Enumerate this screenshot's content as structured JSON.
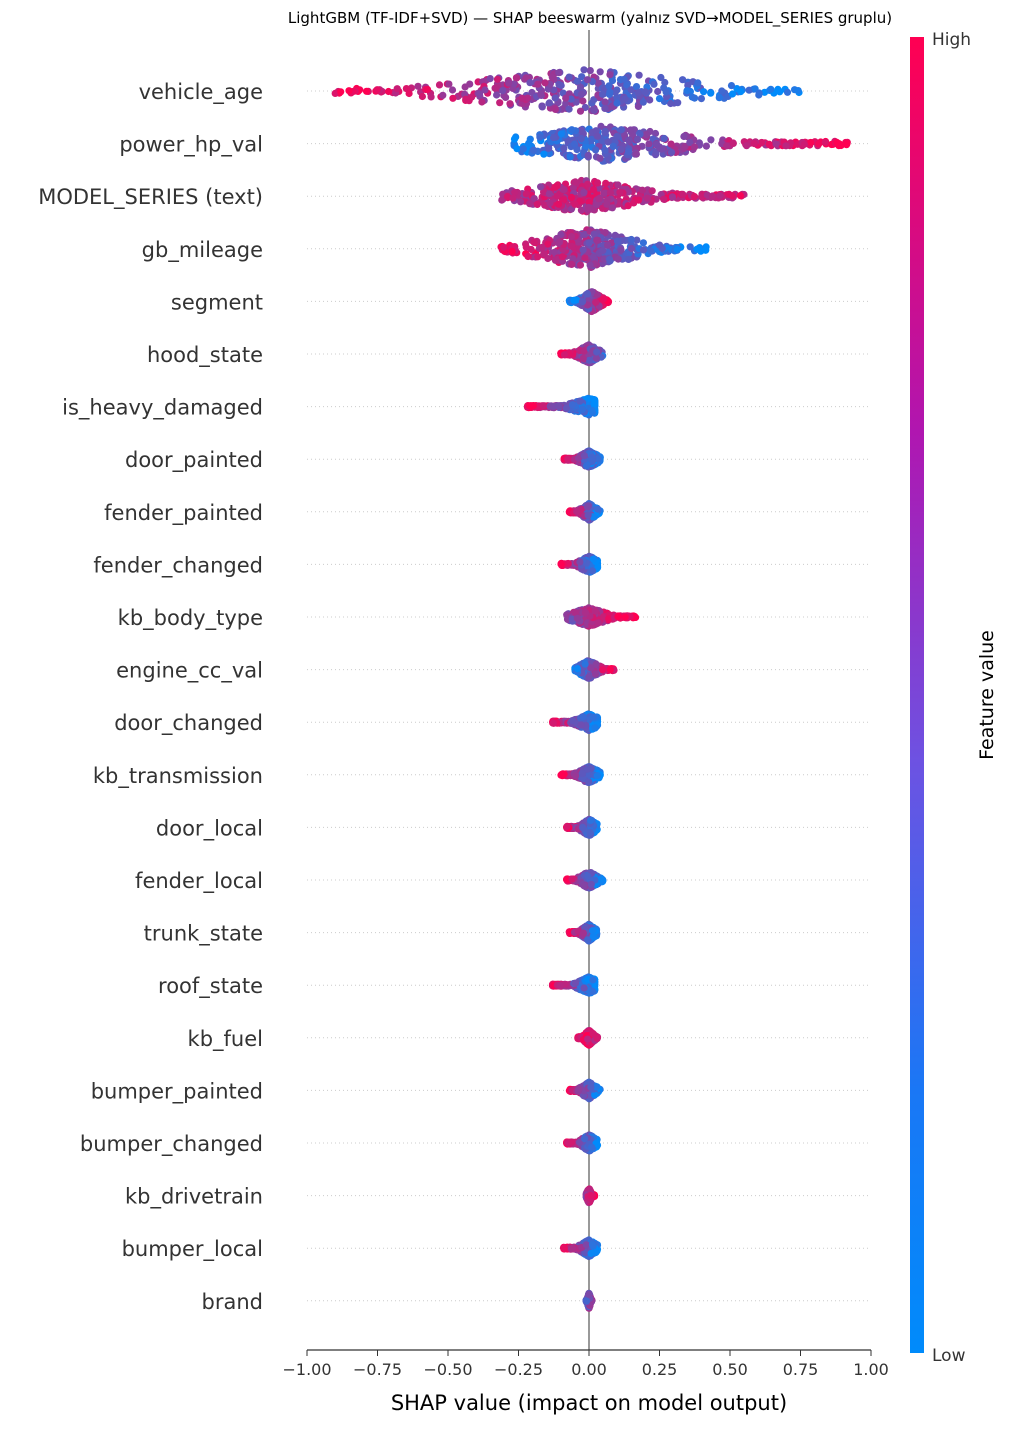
{
  "chart_data": {
    "type": "scatter",
    "subtype": "shap-beeswarm",
    "title": "LightGBM (TF-IDF+SVD) — SHAP beeswarm (yalnız SVD→MODEL_SERIES gruplu)",
    "xlabel": "SHAP value (impact on model output)",
    "xlim": [
      -1.0,
      1.0
    ],
    "xticks": [
      -1.0,
      -0.75,
      -0.5,
      -0.25,
      0.0,
      0.25,
      0.5,
      0.75,
      1.0
    ],
    "xtick_labels": [
      "−1.00",
      "−0.75",
      "−0.50",
      "−0.25",
      "0.00",
      "0.25",
      "0.50",
      "0.75",
      "1.00"
    ],
    "colorbar": {
      "label": "Feature value",
      "high_label": "High",
      "low_label": "Low",
      "low_color": "#008bfb",
      "high_color": "#ff0052"
    },
    "features": [
      {
        "name": "vehicle_age",
        "min": -0.92,
        "max": 0.76,
        "trend": -1,
        "spread": 1.0,
        "center": -0.02,
        "left_color": 1,
        "right_color": 0
      },
      {
        "name": "power_hp_val",
        "min": -0.27,
        "max": 0.92,
        "trend": 1,
        "spread": 0.8,
        "center": 0.05,
        "left_color": 0.1,
        "right_color": 1
      },
      {
        "name": "MODEL_SERIES (text)",
        "min": -0.31,
        "max": 0.55,
        "trend": 0,
        "spread": 0.7,
        "center": -0.02,
        "left_color": 0.7,
        "right_color": 0.8
      },
      {
        "name": "gb_mileage",
        "min": -0.32,
        "max": 0.42,
        "trend": -1,
        "spread": 0.9,
        "center": -0.01,
        "left_color": 1,
        "right_color": 0
      },
      {
        "name": "segment",
        "min": -0.07,
        "max": 0.07,
        "trend": 1,
        "spread": 0.35,
        "center": 0.01,
        "left_color": 0,
        "right_color": 1
      },
      {
        "name": "hood_state",
        "min": -0.1,
        "max": 0.05,
        "trend": -1,
        "spread": 0.3,
        "center": 0.0,
        "left_color": 1,
        "right_color": 0.3
      },
      {
        "name": "is_heavy_damaged",
        "min": -0.22,
        "max": 0.02,
        "trend": -1,
        "spread": 0.25,
        "center": 0.0,
        "left_color": 1,
        "right_color": 0
      },
      {
        "name": "door_painted",
        "min": -0.09,
        "max": 0.04,
        "trend": -1,
        "spread": 0.25,
        "center": 0.0,
        "left_color": 1,
        "right_color": 0
      },
      {
        "name": "fender_painted",
        "min": -0.07,
        "max": 0.04,
        "trend": -1,
        "spread": 0.25,
        "center": 0.0,
        "left_color": 1,
        "right_color": 0
      },
      {
        "name": "fender_changed",
        "min": -0.1,
        "max": 0.03,
        "trend": -1,
        "spread": 0.25,
        "center": 0.0,
        "left_color": 1,
        "right_color": 0
      },
      {
        "name": "kb_body_type",
        "min": -0.08,
        "max": 0.17,
        "trend": 1,
        "spread": 0.3,
        "center": 0.0,
        "left_color": 0.5,
        "right_color": 1
      },
      {
        "name": "engine_cc_val",
        "min": -0.05,
        "max": 0.09,
        "trend": 1,
        "spread": 0.3,
        "center": 0.0,
        "left_color": 0.1,
        "right_color": 1
      },
      {
        "name": "door_changed",
        "min": -0.13,
        "max": 0.03,
        "trend": -1,
        "spread": 0.25,
        "center": 0.0,
        "left_color": 1,
        "right_color": 0
      },
      {
        "name": "kb_transmission",
        "min": -0.1,
        "max": 0.04,
        "trend": -1,
        "spread": 0.25,
        "center": 0.0,
        "left_color": 1,
        "right_color": 0
      },
      {
        "name": "door_local",
        "min": -0.08,
        "max": 0.03,
        "trend": -1,
        "spread": 0.25,
        "center": 0.0,
        "left_color": 1,
        "right_color": 0
      },
      {
        "name": "fender_local",
        "min": -0.08,
        "max": 0.05,
        "trend": -1,
        "spread": 0.25,
        "center": 0.0,
        "left_color": 1,
        "right_color": 0
      },
      {
        "name": "trunk_state",
        "min": -0.07,
        "max": 0.03,
        "trend": -1,
        "spread": 0.25,
        "center": 0.0,
        "left_color": 1,
        "right_color": 0
      },
      {
        "name": "roof_state",
        "min": -0.13,
        "max": 0.02,
        "trend": -1,
        "spread": 0.25,
        "center": 0.0,
        "left_color": 1,
        "right_color": 0
      },
      {
        "name": "kb_fuel",
        "min": -0.04,
        "max": 0.03,
        "trend": -1,
        "spread": 0.2,
        "center": 0.0,
        "left_color": 1,
        "right_color": 0.7
      },
      {
        "name": "bumper_painted",
        "min": -0.07,
        "max": 0.04,
        "trend": -1,
        "spread": 0.25,
        "center": 0.0,
        "left_color": 1,
        "right_color": 0
      },
      {
        "name": "bumper_changed",
        "min": -0.08,
        "max": 0.03,
        "trend": -1,
        "spread": 0.25,
        "center": 0.0,
        "left_color": 1,
        "right_color": 0
      },
      {
        "name": "kb_drivetrain",
        "min": -0.01,
        "max": 0.02,
        "trend": 1,
        "spread": 0.2,
        "center": 0.0,
        "left_color": 0.6,
        "right_color": 1
      },
      {
        "name": "bumper_local",
        "min": -0.09,
        "max": 0.03,
        "trend": -1,
        "spread": 0.25,
        "center": 0.0,
        "left_color": 1,
        "right_color": 0
      },
      {
        "name": "brand",
        "min": -0.01,
        "max": 0.01,
        "trend": 0,
        "spread": 0.2,
        "center": 0.0,
        "left_color": 0.3,
        "right_color": 0.7
      }
    ],
    "grid": false,
    "legend": "colorbar-right"
  }
}
